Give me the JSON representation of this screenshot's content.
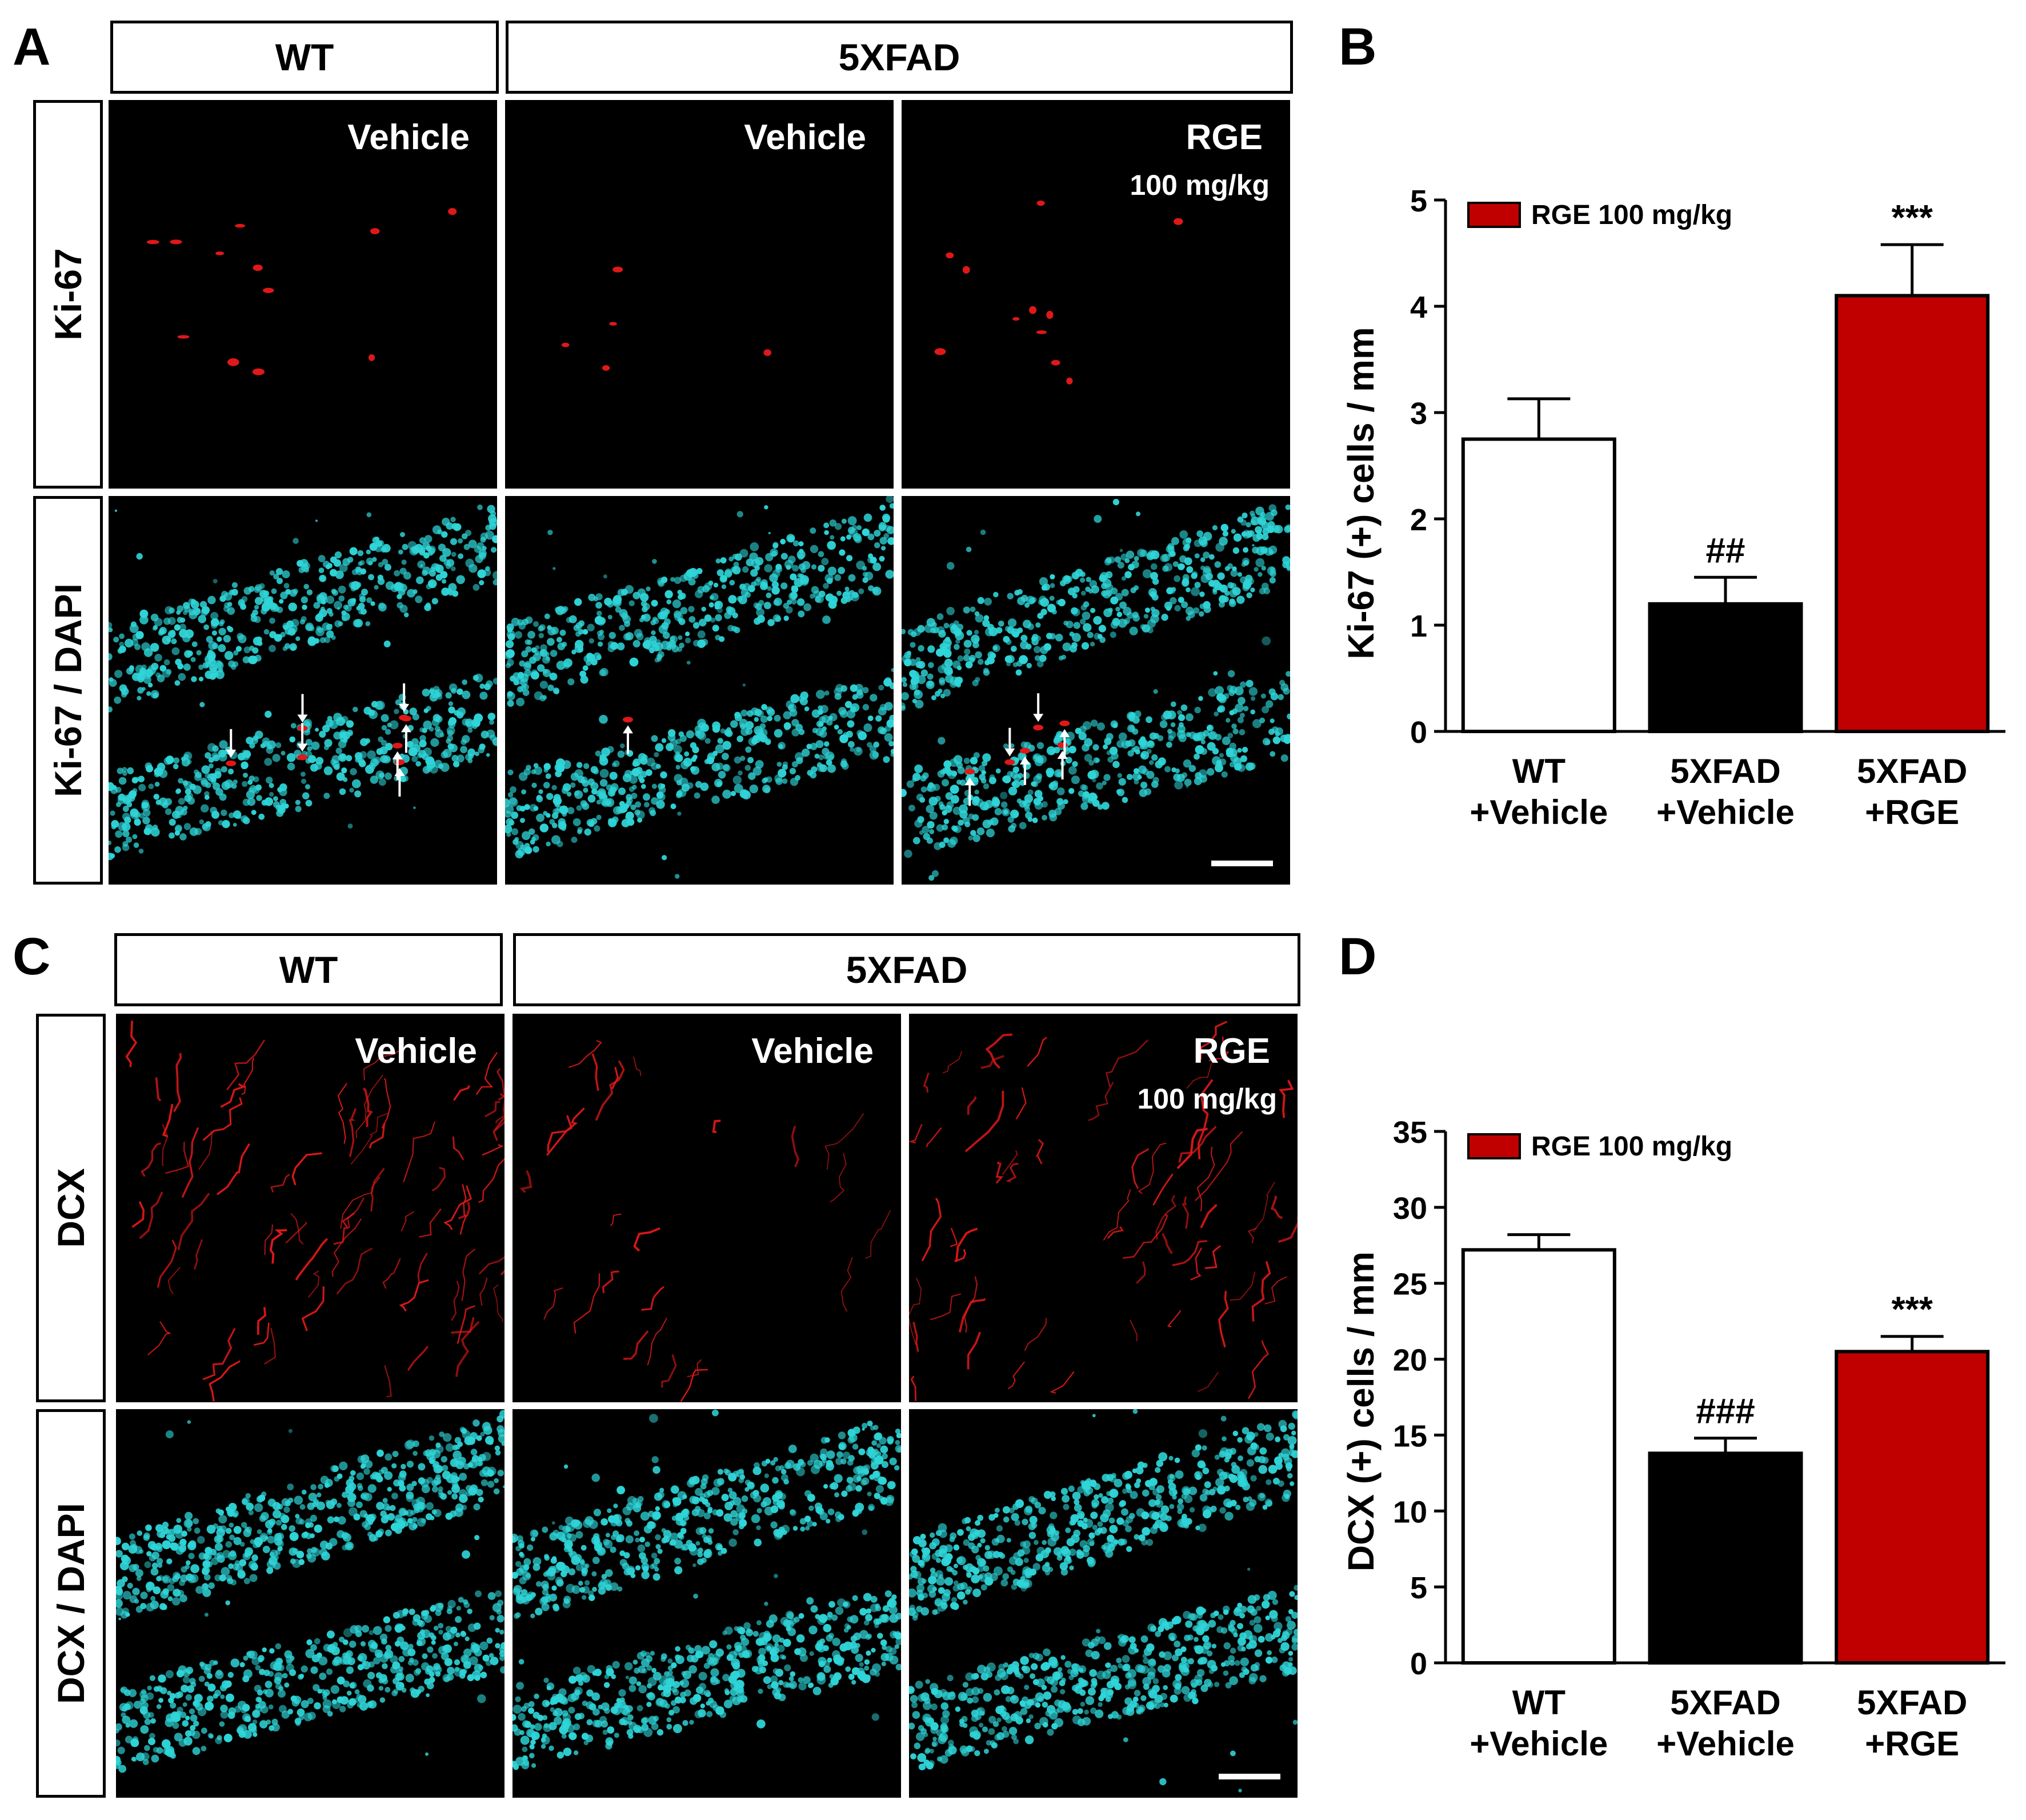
{
  "panels": {
    "A": {
      "label": "A",
      "headers": {
        "wt": "WT",
        "fad": "5XFAD"
      },
      "rows": [
        "Ki-67",
        "Ki-67 / DAPI"
      ],
      "tiles": [
        {
          "title": "Vehicle"
        },
        {
          "title": "Vehicle"
        },
        {
          "title": "RGE",
          "subtitle": "100 mg/kg"
        }
      ]
    },
    "B": {
      "label": "B"
    },
    "C": {
      "label": "C",
      "headers": {
        "wt": "WT",
        "fad": "5XFAD"
      },
      "rows": [
        "DCX",
        "DCX / DAPI"
      ],
      "tiles": [
        {
          "title": "Vehicle"
        },
        {
          "title": "Vehicle"
        },
        {
          "title": "RGE",
          "subtitle": "100 mg/kg"
        }
      ]
    },
    "D": {
      "label": "D"
    }
  },
  "colors": {
    "nuclei": "#2fd5d8",
    "marker": "#e01818",
    "rge_bar": "#c00000",
    "vehicle_5xfad": "#000000",
    "wt": "#ffffff"
  },
  "chart_data": [
    {
      "panel": "B",
      "type": "bar",
      "title": "",
      "ylabel": "Ki-67 (+) cells / mm",
      "xlabel": "",
      "ylim": [
        0,
        5
      ],
      "yticks": [
        0,
        1,
        2,
        3,
        4,
        5
      ],
      "categories": [
        [
          "WT",
          "+Vehicle"
        ],
        [
          "5XFAD",
          "+Vehicle"
        ],
        [
          "5XFAD",
          "+RGE"
        ]
      ],
      "values": [
        2.75,
        1.2,
        4.1
      ],
      "errors": [
        0.38,
        0.25,
        0.48
      ],
      "fills": [
        "#ffffff",
        "#000000",
        "#c00000"
      ],
      "annotations": [
        "",
        "##",
        "***"
      ],
      "legend": {
        "label": "RGE 100 mg/kg",
        "color": "#c00000",
        "position": "top-left"
      }
    },
    {
      "panel": "D",
      "type": "bar",
      "title": "",
      "ylabel": "DCX (+) cells / mm",
      "xlabel": "",
      "ylim": [
        0,
        35
      ],
      "yticks": [
        0,
        5,
        10,
        15,
        20,
        25,
        30,
        35
      ],
      "categories": [
        [
          "WT",
          "+Vehicle"
        ],
        [
          "5XFAD",
          "+Vehicle"
        ],
        [
          "5XFAD",
          "+RGE"
        ]
      ],
      "values": [
        27.2,
        13.8,
        20.5
      ],
      "errors": [
        1.0,
        1.0,
        1.0
      ],
      "fills": [
        "#ffffff",
        "#000000",
        "#c00000"
      ],
      "annotations": [
        "",
        "###",
        "***"
      ],
      "legend": {
        "label": "RGE 100 mg/kg",
        "color": "#c00000",
        "position": "top-left"
      }
    }
  ]
}
